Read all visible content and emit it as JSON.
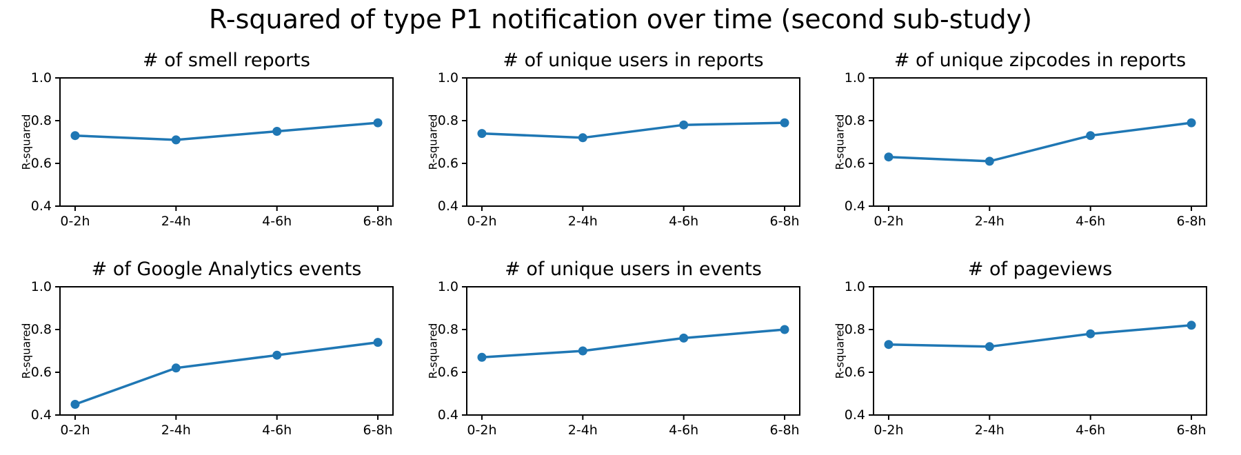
{
  "chart_data": {
    "type": "line",
    "suptitle": "R-squared of type P1 notification over time (second sub-study)",
    "layout": {
      "rows": 2,
      "cols": 3,
      "grid": false,
      "legend": "none",
      "background": "#ffffff"
    },
    "categories": [
      "0-2h",
      "2-4h",
      "4-6h",
      "6-8h"
    ],
    "xlabel": "",
    "ylabel": "R-squared",
    "ylim": [
      0.4,
      1.0
    ],
    "yticks": [
      0.4,
      0.6,
      0.8,
      1.0
    ],
    "line_color": "#1f77b4",
    "axis_color": "#000000",
    "text_color": "#000000",
    "subplots": [
      {
        "title": "# of smell reports",
        "values": [
          0.73,
          0.71,
          0.75,
          0.79
        ]
      },
      {
        "title": "# of unique users in reports",
        "values": [
          0.74,
          0.72,
          0.78,
          0.79
        ]
      },
      {
        "title": "# of unique zipcodes in reports",
        "values": [
          0.63,
          0.61,
          0.73,
          0.79
        ]
      },
      {
        "title": "# of Google Analytics events",
        "values": [
          0.45,
          0.62,
          0.68,
          0.74
        ]
      },
      {
        "title": "# of unique users in events",
        "values": [
          0.67,
          0.7,
          0.76,
          0.8
        ]
      },
      {
        "title": "# of pageviews",
        "values": [
          0.73,
          0.72,
          0.78,
          0.82
        ]
      }
    ]
  }
}
